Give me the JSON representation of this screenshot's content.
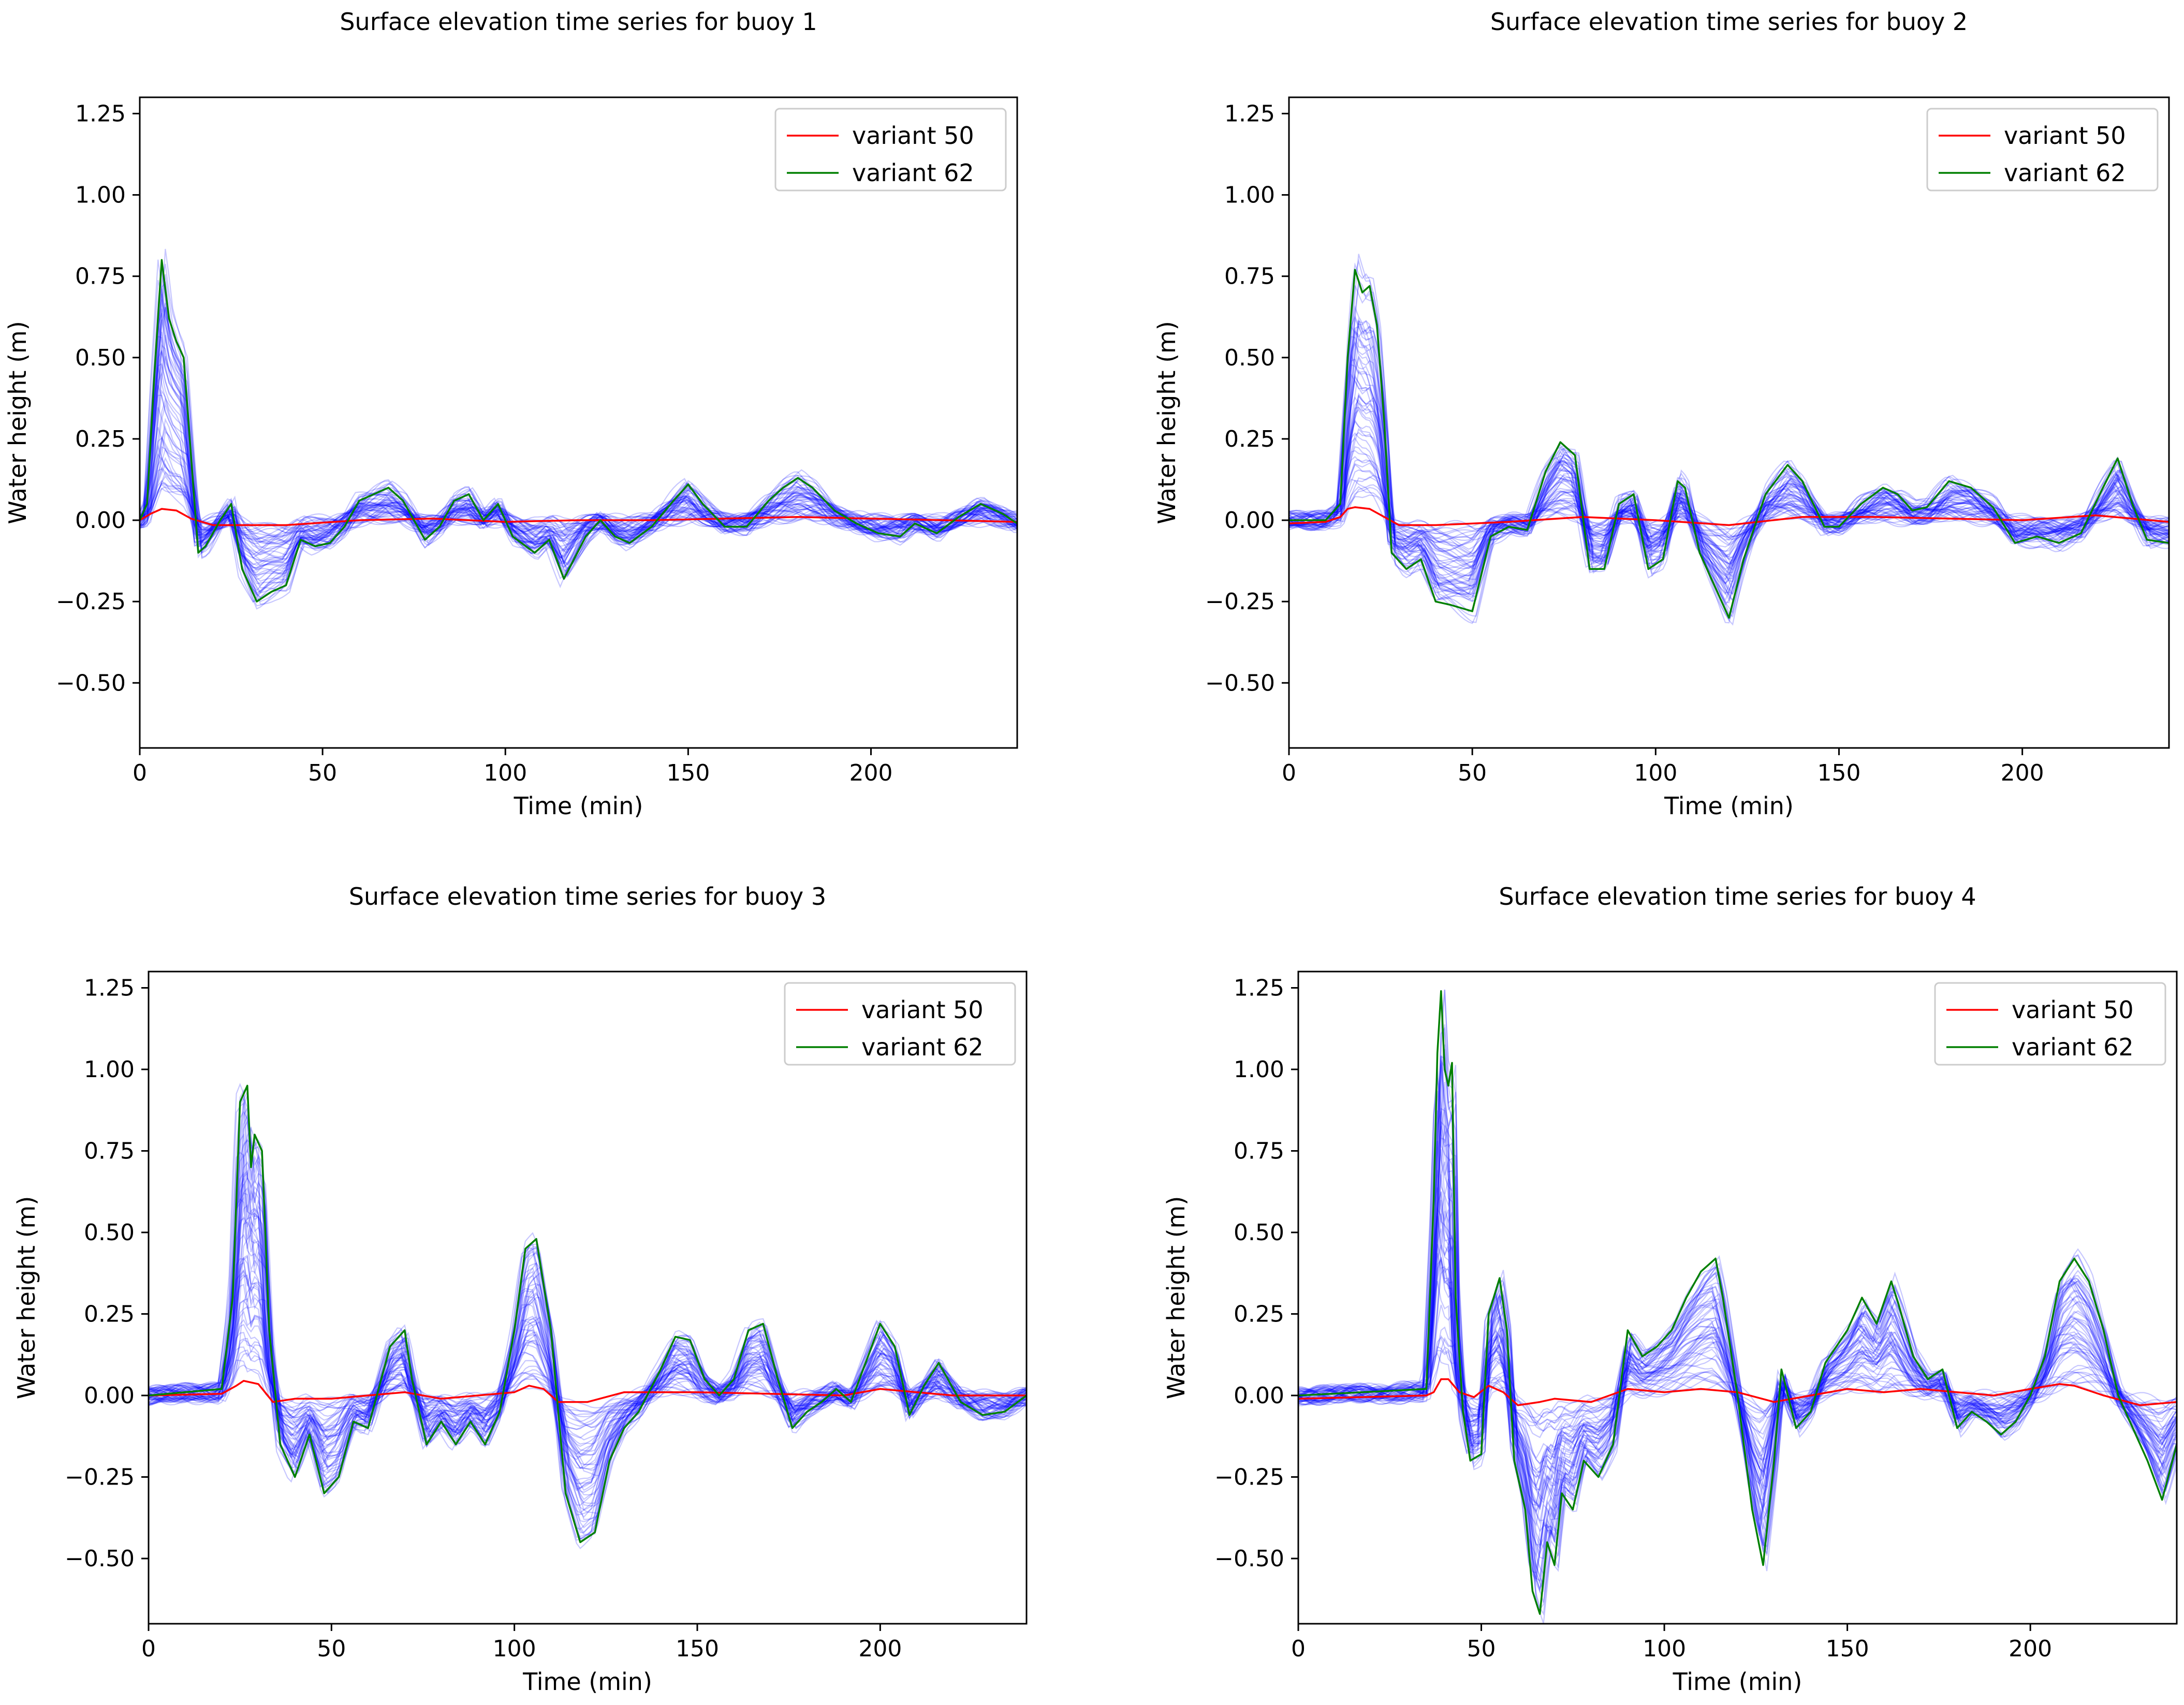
{
  "colors": {
    "variant_50": "#ff0000",
    "variant_62": "#008000",
    "ensemble": "#0000ff",
    "background": "#ffffff",
    "axes": "#000000"
  },
  "chart_data": [
    {
      "type": "line",
      "title": "Surface elevation time series for buoy 1",
      "xlabel": "Time (min)",
      "ylabel": "Water height (m)",
      "xlim": [
        0,
        240
      ],
      "ylim": [
        -0.7,
        1.3
      ],
      "xticks": [
        0,
        50,
        100,
        150,
        200
      ],
      "yticks": [
        -0.5,
        -0.25,
        0.0,
        0.25,
        0.5,
        0.75,
        1.0,
        1.25
      ],
      "xtick_labels": [
        "0",
        "50",
        "100",
        "150",
        "200"
      ],
      "ytick_labels": [
        "−0.50",
        "−0.25",
        "0.00",
        "0.25",
        "0.50",
        "0.75",
        "1.00",
        "1.25"
      ],
      "legend": [
        "variant 50",
        "variant 62"
      ],
      "legend_position": "top-right",
      "ensemble_members": 60,
      "series": [
        {
          "name": "variant 50",
          "color": "#ff0000",
          "x": [
            0,
            3,
            6,
            10,
            14,
            20,
            30,
            40,
            60,
            80,
            100,
            120,
            140,
            160,
            180,
            200,
            220,
            240
          ],
          "values": [
            0.0,
            0.02,
            0.035,
            0.03,
            0.005,
            -0.015,
            -0.015,
            -0.015,
            0.0,
            0.005,
            -0.005,
            0.0,
            0.0,
            0.005,
            0.01,
            0.005,
            0.0,
            -0.005
          ]
        },
        {
          "name": "variant 62",
          "color": "#008000",
          "x": [
            0,
            2,
            4,
            6,
            8,
            10,
            12,
            14,
            16,
            18,
            22,
            25,
            28,
            32,
            36,
            40,
            44,
            48,
            52,
            56,
            60,
            64,
            68,
            72,
            78,
            82,
            86,
            90,
            94,
            98,
            102,
            108,
            112,
            116,
            122,
            126,
            130,
            134,
            140,
            146,
            150,
            154,
            160,
            166,
            172,
            176,
            180,
            184,
            190,
            196,
            202,
            208,
            212,
            218,
            224,
            230,
            236,
            240
          ],
          "values": [
            0.0,
            0.05,
            0.45,
            0.8,
            0.62,
            0.55,
            0.5,
            0.2,
            -0.1,
            -0.08,
            0.0,
            0.05,
            -0.15,
            -0.25,
            -0.22,
            -0.2,
            -0.06,
            -0.08,
            -0.07,
            -0.02,
            0.06,
            0.08,
            0.1,
            0.06,
            -0.06,
            -0.02,
            0.06,
            0.08,
            0.0,
            0.05,
            -0.05,
            -0.1,
            -0.06,
            -0.18,
            -0.05,
            0.0,
            -0.05,
            -0.07,
            -0.02,
            0.06,
            0.11,
            0.05,
            -0.02,
            -0.02,
            0.06,
            0.1,
            0.13,
            0.1,
            0.03,
            -0.01,
            -0.04,
            -0.05,
            -0.01,
            -0.04,
            0.01,
            0.05,
            0.02,
            -0.01
          ]
        }
      ]
    },
    {
      "type": "line",
      "title": "Surface elevation time series for buoy 2",
      "xlabel": "Time (min)",
      "ylabel": "Water height (m)",
      "xlim": [
        0,
        240
      ],
      "ylim": [
        -0.7,
        1.3
      ],
      "xticks": [
        0,
        50,
        100,
        150,
        200
      ],
      "yticks": [
        -0.5,
        -0.25,
        0.0,
        0.25,
        0.5,
        0.75,
        1.0,
        1.25
      ],
      "xtick_labels": [
        "0",
        "50",
        "100",
        "150",
        "200"
      ],
      "ytick_labels": [
        "−0.50",
        "−0.25",
        "0.00",
        "0.25",
        "0.50",
        "0.75",
        "1.00",
        "1.25"
      ],
      "legend": [
        "variant 50",
        "variant 62"
      ],
      "legend_position": "top-right",
      "ensemble_members": 60,
      "series": [
        {
          "name": "variant 50",
          "color": "#ff0000",
          "x": [
            0,
            10,
            14,
            16,
            18,
            22,
            26,
            30,
            40,
            60,
            80,
            100,
            120,
            140,
            160,
            180,
            200,
            220,
            240
          ],
          "values": [
            -0.01,
            -0.005,
            0.01,
            0.035,
            0.04,
            0.035,
            0.01,
            -0.015,
            -0.015,
            -0.005,
            0.01,
            0.0,
            -0.015,
            0.01,
            0.01,
            0.005,
            0.0,
            0.015,
            -0.005
          ]
        },
        {
          "name": "variant 62",
          "color": "#008000",
          "x": [
            0,
            10,
            14,
            16,
            18,
            20,
            22,
            24,
            26,
            28,
            32,
            36,
            40,
            44,
            50,
            55,
            60,
            65,
            70,
            74,
            78,
            82,
            86,
            90,
            94,
            98,
            102,
            106,
            108,
            112,
            116,
            120,
            124,
            130,
            136,
            140,
            146,
            150,
            156,
            162,
            166,
            170,
            174,
            180,
            186,
            192,
            198,
            204,
            210,
            216,
            222,
            226,
            230,
            234,
            240
          ],
          "values": [
            0.0,
            0.0,
            0.05,
            0.5,
            0.77,
            0.7,
            0.72,
            0.6,
            0.3,
            -0.1,
            -0.15,
            -0.12,
            -0.25,
            -0.26,
            -0.28,
            -0.05,
            -0.02,
            -0.03,
            0.15,
            0.24,
            0.2,
            -0.15,
            -0.15,
            0.05,
            0.08,
            -0.15,
            -0.12,
            0.12,
            0.1,
            -0.1,
            -0.2,
            -0.3,
            -0.12,
            0.08,
            0.17,
            0.12,
            -0.02,
            -0.02,
            0.05,
            0.1,
            0.08,
            0.03,
            0.04,
            0.12,
            0.1,
            0.04,
            -0.07,
            -0.05,
            -0.07,
            -0.04,
            0.1,
            0.19,
            0.05,
            -0.06,
            -0.07
          ]
        }
      ]
    },
    {
      "type": "line",
      "title": "Surface elevation time series for buoy 3",
      "xlabel": "Time (min)",
      "ylabel": "Water height (m)",
      "xlim": [
        0,
        240
      ],
      "ylim": [
        -0.7,
        1.3
      ],
      "xticks": [
        0,
        50,
        100,
        150,
        200
      ],
      "yticks": [
        -0.5,
        -0.25,
        0.0,
        0.25,
        0.5,
        0.75,
        1.0,
        1.25
      ],
      "xtick_labels": [
        "0",
        "50",
        "100",
        "150",
        "200"
      ],
      "ytick_labels": [
        "−0.50",
        "−0.25",
        "0.00",
        "0.25",
        "0.50",
        "0.75",
        "1.00",
        "1.25"
      ],
      "legend": [
        "variant 50",
        "variant 62"
      ],
      "legend_position": "top-right",
      "ensemble_members": 60,
      "series": [
        {
          "name": "variant 50",
          "color": "#ff0000",
          "x": [
            0,
            20,
            24,
            26,
            30,
            34,
            40,
            50,
            60,
            70,
            80,
            90,
            100,
            104,
            108,
            112,
            120,
            130,
            150,
            170,
            190,
            200,
            210,
            220,
            240
          ],
          "values": [
            0.0,
            0.005,
            0.03,
            0.045,
            0.035,
            -0.02,
            -0.01,
            -0.01,
            0.0,
            0.01,
            -0.01,
            0.0,
            0.01,
            0.03,
            0.02,
            -0.02,
            -0.02,
            0.01,
            0.01,
            0.005,
            0.0,
            0.02,
            0.01,
            0.0,
            0.0
          ]
        },
        {
          "name": "variant 62",
          "color": "#008000",
          "x": [
            0,
            20,
            23,
            25,
            27,
            28,
            29,
            31,
            33,
            36,
            40,
            44,
            48,
            52,
            56,
            60,
            66,
            70,
            72,
            76,
            80,
            84,
            88,
            92,
            96,
            100,
            103,
            106,
            110,
            114,
            118,
            122,
            126,
            130,
            134,
            140,
            144,
            148,
            152,
            156,
            160,
            164,
            168,
            172,
            176,
            180,
            184,
            188,
            192,
            196,
            200,
            204,
            208,
            212,
            216,
            222,
            228,
            234,
            240
          ],
          "values": [
            0.0,
            0.02,
            0.3,
            0.9,
            0.95,
            0.7,
            0.8,
            0.75,
            0.2,
            -0.15,
            -0.25,
            -0.12,
            -0.3,
            -0.25,
            -0.08,
            -0.1,
            0.15,
            0.2,
            0.05,
            -0.15,
            -0.08,
            -0.15,
            -0.08,
            -0.15,
            -0.05,
            0.2,
            0.45,
            0.48,
            0.2,
            -0.3,
            -0.45,
            -0.42,
            -0.2,
            -0.1,
            -0.05,
            0.08,
            0.18,
            0.17,
            0.05,
            0.0,
            0.05,
            0.2,
            0.22,
            0.05,
            -0.1,
            -0.05,
            -0.02,
            0.02,
            -0.02,
            0.1,
            0.22,
            0.15,
            -0.06,
            0.03,
            0.1,
            -0.02,
            -0.06,
            -0.05,
            0.0
          ]
        }
      ]
    },
    {
      "type": "line",
      "title": "Surface elevation time series for buoy 4",
      "xlabel": "Time (min)",
      "ylabel": "Water height (m)",
      "xlim": [
        0,
        240
      ],
      "ylim": [
        -0.7,
        1.3
      ],
      "xticks": [
        0,
        50,
        100,
        150,
        200
      ],
      "yticks": [
        -0.5,
        -0.25,
        0.0,
        0.25,
        0.5,
        0.75,
        1.0,
        1.25
      ],
      "xtick_labels": [
        "0",
        "50",
        "100",
        "150",
        "200"
      ],
      "ytick_labels": [
        "−0.50",
        "−0.25",
        "0.00",
        "0.25",
        "0.50",
        "0.75",
        "1.00",
        "1.25"
      ],
      "legend": [
        "variant 50",
        "variant 62"
      ],
      "legend_position": "top-right",
      "ensemble_members": 60,
      "series": [
        {
          "name": "variant 50",
          "color": "#ff0000",
          "x": [
            0,
            35,
            37,
            39,
            41,
            44,
            48,
            52,
            56,
            60,
            66,
            70,
            80,
            90,
            100,
            110,
            120,
            130,
            140,
            150,
            160,
            170,
            180,
            190,
            200,
            208,
            212,
            220,
            230,
            240
          ],
          "values": [
            -0.01,
            0.0,
            0.01,
            0.05,
            0.05,
            0.01,
            -0.005,
            0.03,
            0.01,
            -0.03,
            -0.02,
            -0.01,
            -0.02,
            0.02,
            0.01,
            0.02,
            0.01,
            -0.02,
            0.0,
            0.02,
            0.01,
            0.02,
            0.01,
            0.0,
            0.02,
            0.035,
            0.03,
            0.0,
            -0.03,
            -0.02
          ]
        },
        {
          "name": "variant 62",
          "color": "#008000",
          "x": [
            0,
            35,
            37,
            38,
            39,
            40,
            41,
            42,
            43,
            45,
            47,
            50,
            52,
            55,
            57,
            59,
            62,
            64,
            66,
            68,
            70,
            72,
            75,
            78,
            82,
            86,
            90,
            94,
            98,
            102,
            106,
            110,
            114,
            116,
            120,
            124,
            127,
            130,
            132,
            136,
            140,
            144,
            150,
            154,
            158,
            162,
            164,
            168,
            172,
            176,
            180,
            184,
            188,
            192,
            196,
            200,
            204,
            208,
            212,
            216,
            220,
            224,
            228,
            232,
            236,
            240
          ],
          "values": [
            0.0,
            0.02,
            0.6,
            1.05,
            1.24,
            1.0,
            0.95,
            1.02,
            0.3,
            -0.05,
            -0.2,
            -0.18,
            0.25,
            0.36,
            0.2,
            -0.2,
            -0.35,
            -0.6,
            -0.67,
            -0.45,
            -0.52,
            -0.3,
            -0.35,
            -0.2,
            -0.25,
            -0.15,
            0.2,
            0.12,
            0.15,
            0.2,
            0.3,
            0.38,
            0.42,
            0.3,
            0.0,
            -0.35,
            -0.52,
            -0.2,
            0.08,
            -0.1,
            -0.05,
            0.1,
            0.2,
            0.3,
            0.22,
            0.35,
            0.28,
            0.12,
            0.05,
            0.08,
            -0.1,
            -0.05,
            -0.08,
            -0.12,
            -0.08,
            0.0,
            0.12,
            0.35,
            0.42,
            0.35,
            0.2,
            0.0,
            -0.1,
            -0.2,
            -0.32,
            -0.15
          ]
        }
      ]
    }
  ]
}
